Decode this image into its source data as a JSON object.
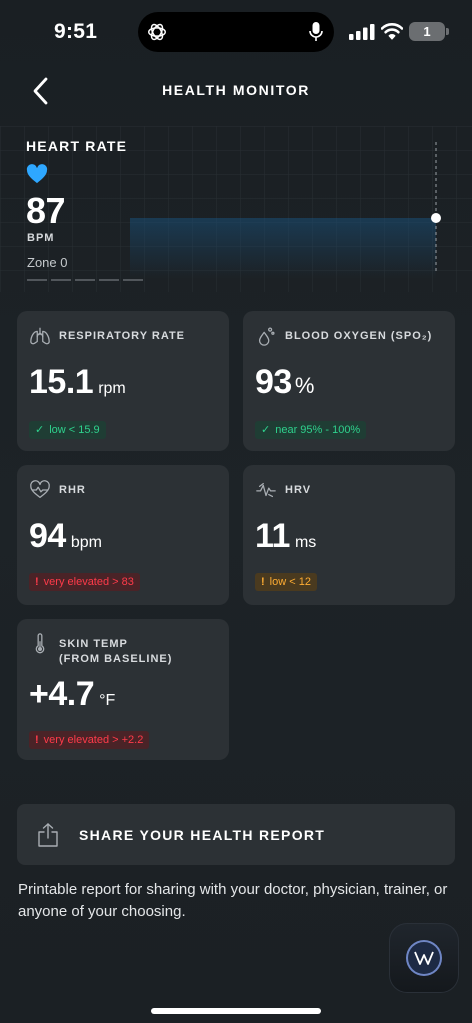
{
  "status_bar": {
    "time": "9:51",
    "battery": "1"
  },
  "header": {
    "title": "HEALTH MONITOR"
  },
  "heart_rate": {
    "title": "HEART RATE",
    "value": "87",
    "unit": "BPM",
    "zone": "Zone 0",
    "color": "#2ea7ff"
  },
  "metrics": [
    {
      "icon": "lungs-icon",
      "title": "RESPIRATORY RATE",
      "value": "15.1",
      "unit": "rpm",
      "status": "good",
      "badge_mark": "✓",
      "badge_text": "low < 15.9"
    },
    {
      "icon": "droplet-icon",
      "title": "BLOOD OXYGEN (SPO₂)",
      "value": "93",
      "unit": "%",
      "status": "good",
      "badge_mark": "✓",
      "badge_text": "near 95% - 100%"
    },
    {
      "icon": "heart-pulse-icon",
      "title": "RHR",
      "value": "94",
      "unit": "bpm",
      "status": "bad",
      "badge_mark": "!",
      "badge_text": "very elevated > 83"
    },
    {
      "icon": "hrv-wave-icon",
      "title": "HRV",
      "value": "11",
      "unit": "ms",
      "status": "warn",
      "badge_mark": "!",
      "badge_text": "low < 12"
    },
    {
      "icon": "thermometer-icon",
      "title_line1": "SKIN TEMP",
      "title_line2": "(FROM BASELINE)",
      "value": "+4.7",
      "unit": "°F",
      "status": "bad",
      "badge_mark": "!",
      "badge_text": "very elevated > +2.2"
    }
  ],
  "share": {
    "label": "SHARE YOUR HEALTH REPORT",
    "description": "Printable report for sharing with your doctor, physician, trainer, or anyone of your choosing."
  },
  "colors": {
    "good": "#2fd18d",
    "bad": "#ff3b4a",
    "warn": "#ffad33",
    "card": "#2c3135"
  }
}
